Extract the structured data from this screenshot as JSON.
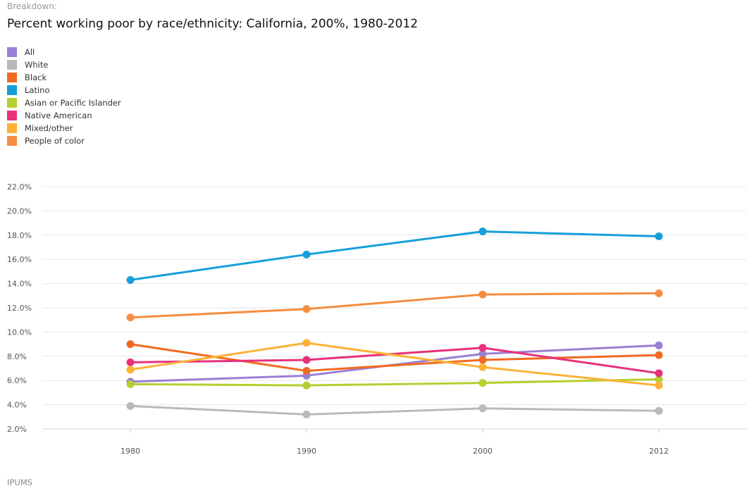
{
  "header": {
    "eyebrow": "Breakdown:",
    "title": "Percent working poor by race/ethnicity: California, 200%, 1980-2012"
  },
  "footer": {
    "source": "IPUMS"
  },
  "chart_data": {
    "type": "line",
    "title": "Percent working poor by race/ethnicity: California, 200%, 1980-2012",
    "xlabel": "",
    "ylabel": "",
    "x": [
      "1980",
      "1990",
      "2000",
      "2012"
    ],
    "ylim": [
      2,
      22
    ],
    "y_ticks": [
      2,
      4,
      6,
      8,
      10,
      12,
      14,
      16,
      18,
      20,
      22
    ],
    "y_tick_labels": [
      "2.0%",
      "4.0%",
      "6.0%",
      "8.0%",
      "10.0%",
      "12.0%",
      "14.0%",
      "16.0%",
      "18.0%",
      "20.0%",
      "22.0%"
    ],
    "grid": "horizontal",
    "legend_position": "top-left",
    "series": [
      {
        "name": "All",
        "color": "#9b7fd4",
        "values": [
          5.9,
          6.4,
          8.2,
          8.9
        ]
      },
      {
        "name": "White",
        "color": "#b7babd",
        "values": [
          3.9,
          3.2,
          3.7,
          3.5
        ]
      },
      {
        "name": "Black",
        "color": "#f26a21",
        "values": [
          9.0,
          6.8,
          7.7,
          8.1
        ]
      },
      {
        "name": "Latino",
        "color": "#159fda",
        "values": [
          14.3,
          16.4,
          18.3,
          17.9
        ]
      },
      {
        "name": "Asian or Pacific Islander",
        "color": "#b5cf2f",
        "values": [
          5.7,
          5.6,
          5.8,
          6.1
        ]
      },
      {
        "name": "Native American",
        "color": "#e8317a",
        "values": [
          7.5,
          7.7,
          8.7,
          6.6
        ]
      },
      {
        "name": "Mixed/other",
        "color": "#fbb236",
        "values": [
          6.9,
          9.1,
          7.1,
          5.6
        ]
      },
      {
        "name": "People of color",
        "color": "#f58d3f",
        "values": [
          11.2,
          11.9,
          13.1,
          13.2
        ]
      }
    ]
  }
}
